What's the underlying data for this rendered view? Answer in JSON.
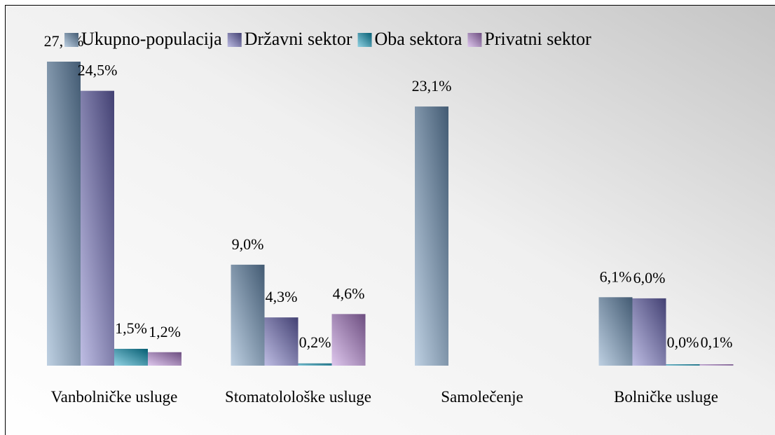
{
  "chart_data": {
    "type": "bar",
    "categories": [
      "Vanbolničke usluge",
      "Stomatolološke usluge",
      "Samolečenje",
      "Bolničke usluge"
    ],
    "series": [
      {
        "name": "Ukupno-populacija",
        "color": "#6f97bf",
        "values": [
          27.1,
          9.0,
          23.1,
          6.1
        ],
        "value_labels": [
          "27,1%",
          "9,0%",
          "23,1%",
          "6,1%"
        ]
      },
      {
        "name": "Državni sektor",
        "color": "#6f6cc0",
        "values": [
          24.5,
          4.3,
          null,
          6.0
        ],
        "value_labels": [
          "24,5%",
          "4,3%",
          null,
          "6,0%"
        ]
      },
      {
        "name": "Oba sektora",
        "color": "#0a9cc0",
        "values": [
          1.5,
          0.2,
          null,
          0
        ],
        "value_labels": [
          "1,5%",
          "0,2%",
          null,
          "0,0%"
        ]
      },
      {
        "name": "Privatni sektor",
        "color": "#b582d6",
        "values": [
          1.2,
          4.6,
          null,
          0.1
        ],
        "value_labels": [
          "1,2%",
          "4,6%",
          null,
          "0,1%"
        ]
      }
    ],
    "legend": "top"
  }
}
